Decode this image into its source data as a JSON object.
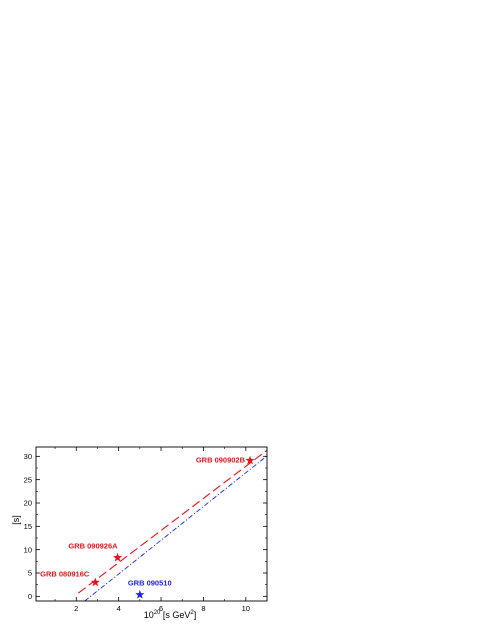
{
  "chart_data": {
    "type": "scatter",
    "title": "",
    "xlabel_base": "10",
    "xlabel_exp": "20",
    "xlabel_unit": " [s GeV",
    "xlabel_unit_exp": "2",
    "xlabel_close": "]",
    "ylabel": "[s]",
    "xlim": [
      0.1,
      11
    ],
    "ylim": [
      -1,
      32
    ],
    "xticks": [
      2,
      4,
      6,
      8,
      10
    ],
    "yticks": [
      0,
      5,
      10,
      15,
      20,
      25,
      30
    ],
    "grid": false,
    "legend": "none",
    "points": [
      {
        "label": "GRB 080916C",
        "x": 2.9,
        "y": 3.0,
        "color": "#e8141c"
      },
      {
        "label": "GRB 090926A",
        "x": 3.95,
        "y": 8.3,
        "color": "#e8141c"
      },
      {
        "label": "GRB 090902B",
        "x": 10.2,
        "y": 29.1,
        "color": "#e8141c"
      },
      {
        "label": "GRB 090510",
        "x": 5.0,
        "y": 0.35,
        "color": "#1f24e6"
      }
    ],
    "lines": [
      {
        "style": "dashed",
        "color": "#e8141c",
        "x": [
          2.1,
          11.0
        ],
        "y": [
          0.7,
          31.3
        ]
      },
      {
        "style": "dash-dot",
        "color": "#1f24e6",
        "x": [
          2.4,
          11.0
        ],
        "y": [
          -1.0,
          30.1
        ]
      }
    ]
  }
}
